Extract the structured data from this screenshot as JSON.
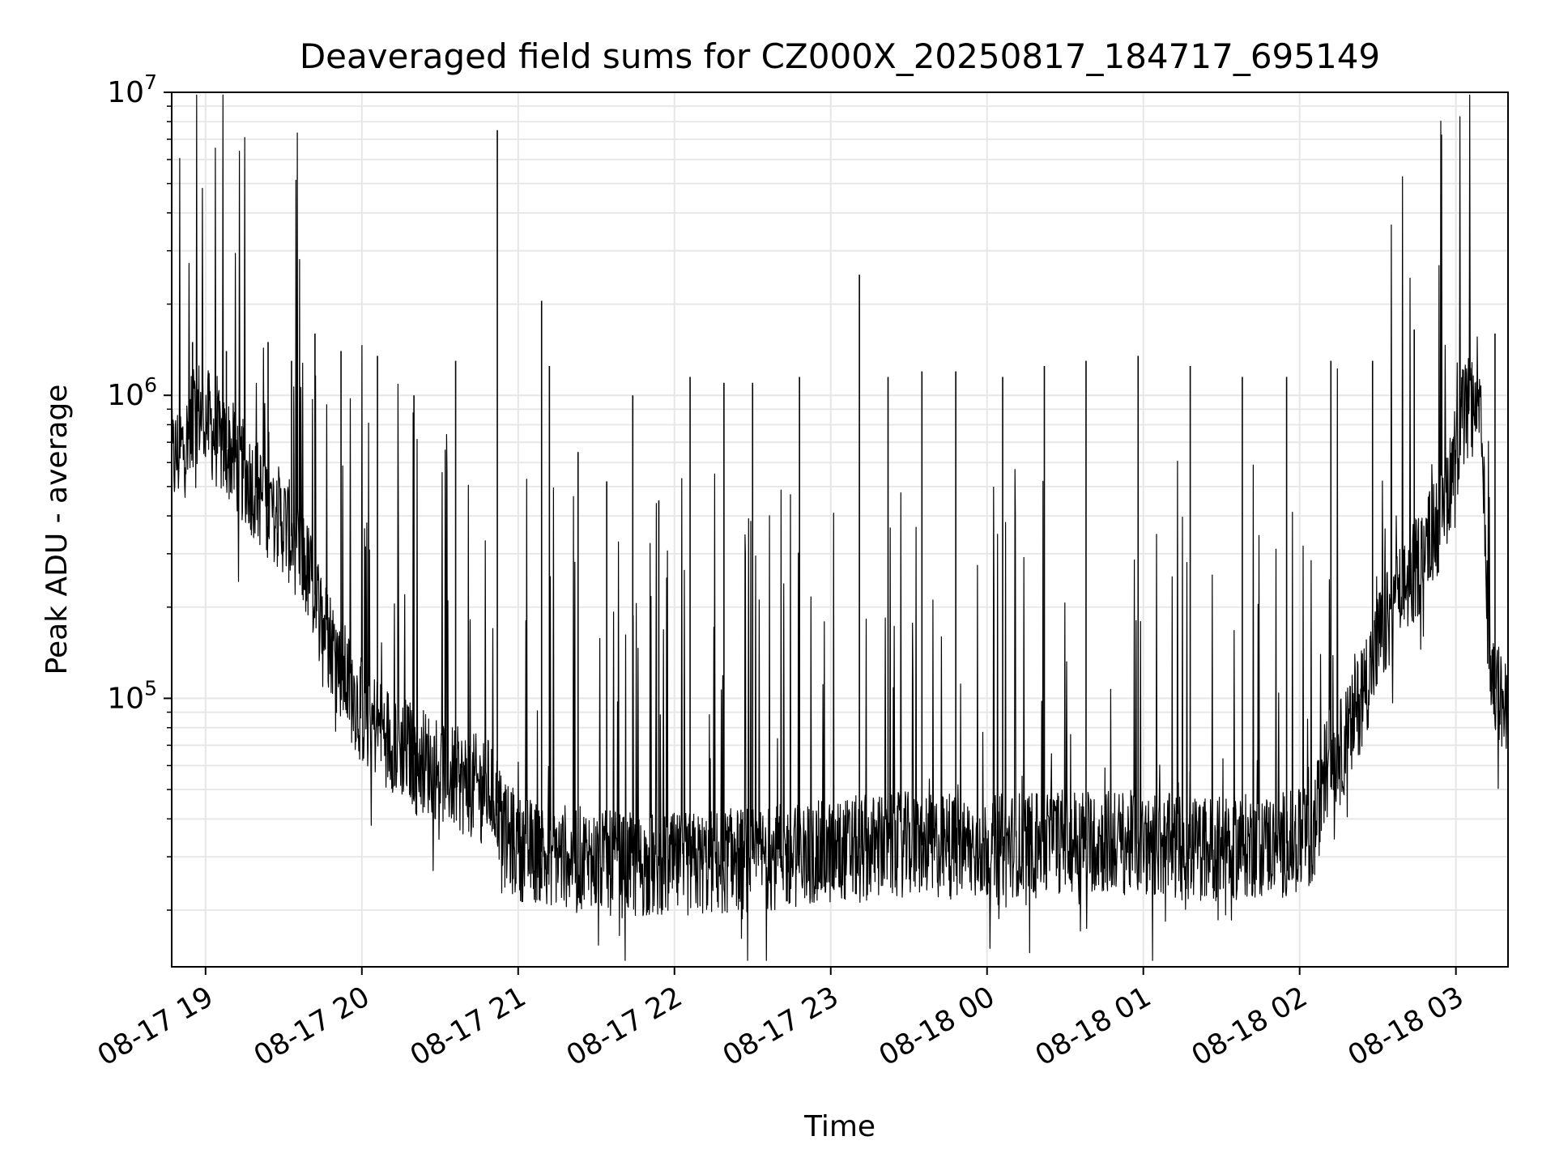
{
  "chart_data": {
    "type": "line",
    "title": "Deaveraged field sums for CZ000X_20250817_184717_695149",
    "xlabel": "Time",
    "ylabel": "Peak ADU - average",
    "yscale": "log",
    "ylim": [
      13000,
      10000000
    ],
    "xlim": [
      "2025-08-17 18:47",
      "2025-08-18 03:20"
    ],
    "grid": true,
    "grid_color": "#e6e6e6",
    "line_color": "#000000",
    "x_ticks": [
      {
        "t": "2025-08-17 19:00",
        "label": "08-17 19"
      },
      {
        "t": "2025-08-17 20:00",
        "label": "08-17 20"
      },
      {
        "t": "2025-08-17 21:00",
        "label": "08-17 21"
      },
      {
        "t": "2025-08-17 22:00",
        "label": "08-17 22"
      },
      {
        "t": "2025-08-17 23:00",
        "label": "08-17 23"
      },
      {
        "t": "2025-08-18 00:00",
        "label": "08-18 00"
      },
      {
        "t": "2025-08-18 01:00",
        "label": "08-18 01"
      },
      {
        "t": "2025-08-18 02:00",
        "label": "08-18 02"
      },
      {
        "t": "2025-08-18 03:00",
        "label": "08-18 03"
      }
    ],
    "y_ticks": [
      {
        "value": 100000,
        "base": "10",
        "exp": "5"
      },
      {
        "value": 1000000,
        "base": "10",
        "exp": "6"
      },
      {
        "value": 10000000,
        "base": "10",
        "exp": "7"
      }
    ],
    "series": [
      {
        "x": [
          "2025-08-17 18:47",
          "2025-08-17 18:50",
          "2025-08-17 18:53",
          "2025-08-17 18:55",
          "2025-08-17 18:57",
          "2025-08-17 19:00",
          "2025-08-17 19:05",
          "2025-08-17 19:10",
          "2025-08-17 19:12",
          "2025-08-17 19:15",
          "2025-08-17 19:20",
          "2025-08-17 19:25",
          "2025-08-17 19:30",
          "2025-08-17 19:35",
          "2025-08-17 19:40",
          "2025-08-17 19:45",
          "2025-08-17 19:50",
          "2025-08-17 19:55",
          "2025-08-17 20:00",
          "2025-08-17 20:10",
          "2025-08-17 20:20",
          "2025-08-17 20:30",
          "2025-08-17 20:40",
          "2025-08-17 20:50",
          "2025-08-17 20:52",
          "2025-08-17 20:55",
          "2025-08-17 21:00",
          "2025-08-17 21:10",
          "2025-08-17 21:20",
          "2025-08-17 21:30",
          "2025-08-17 21:40",
          "2025-08-17 21:50",
          "2025-08-17 22:00",
          "2025-08-17 22:10",
          "2025-08-17 22:20",
          "2025-08-17 22:30",
          "2025-08-17 22:40",
          "2025-08-17 22:50",
          "2025-08-17 23:00",
          "2025-08-17 23:10",
          "2025-08-17 23:20",
          "2025-08-17 23:30",
          "2025-08-17 23:40",
          "2025-08-17 23:50",
          "2025-08-18 00:00",
          "2025-08-18 00:10",
          "2025-08-18 00:20",
          "2025-08-18 00:30",
          "2025-08-18 00:40",
          "2025-08-18 00:50",
          "2025-08-18 01:00",
          "2025-08-18 01:10",
          "2025-08-18 01:20",
          "2025-08-18 01:30",
          "2025-08-18 01:40",
          "2025-08-18 01:50",
          "2025-08-18 02:00",
          "2025-08-18 02:05",
          "2025-08-18 02:10",
          "2025-08-18 02:15",
          "2025-08-18 02:20",
          "2025-08-18 02:25",
          "2025-08-18 02:30",
          "2025-08-18 02:35",
          "2025-08-18 02:40",
          "2025-08-18 02:45",
          "2025-08-18 02:50",
          "2025-08-18 02:55",
          "2025-08-18 03:00",
          "2025-08-18 03:02",
          "2025-08-18 03:04",
          "2025-08-18 03:06",
          "2025-08-18 03:08",
          "2025-08-18 03:10",
          "2025-08-18 03:12",
          "2025-08-18 03:14",
          "2025-08-18 03:16",
          "2025-08-18 03:18",
          "2025-08-18 03:20"
        ],
        "y": [
          600000,
          650000,
          700000,
          800000,
          900000,
          850000,
          700000,
          650000,
          600000,
          550000,
          480000,
          420000,
          380000,
          320000,
          250000,
          180000,
          140000,
          110000,
          90000,
          75000,
          65000,
          58000,
          52000,
          50000,
          45000,
          35000,
          32000,
          31000,
          30000,
          29000,
          28000,
          28000,
          28000,
          28500,
          29000,
          29500,
          30000,
          30500,
          31000,
          32000,
          32500,
          33000,
          32500,
          32000,
          32000,
          33000,
          33500,
          34000,
          34000,
          33500,
          33000,
          32500,
          32000,
          32000,
          32500,
          33000,
          33500,
          34000,
          60000,
          65000,
          80000,
          110000,
          150000,
          190000,
          230000,
          270000,
          330000,
          420000,
          650000,
          800000,
          880000,
          900000,
          880000,
          700000,
          200000,
          110000,
          105000,
          95000,
          80000
        ]
      }
    ],
    "spikes": [
      {
        "t": "2025-08-17 18:55",
        "y": 1500000
      },
      {
        "t": "2025-08-17 19:08",
        "y": 1400000
      },
      {
        "t": "2025-08-17 19:24",
        "y": 1500000
      },
      {
        "t": "2025-08-17 19:33",
        "y": 1300000
      },
      {
        "t": "2025-08-17 19:42",
        "y": 1600000
      },
      {
        "t": "2025-08-17 19:52",
        "y": 1400000
      },
      {
        "t": "2025-08-17 20:06",
        "y": 1350000
      },
      {
        "t": "2025-08-17 20:20",
        "y": 1000000
      },
      {
        "t": "2025-08-17 20:36",
        "y": 1300000
      },
      {
        "t": "2025-08-17 20:52",
        "y": 7500000
      },
      {
        "t": "2025-08-17 21:09",
        "y": 2050000
      },
      {
        "t": "2025-08-17 21:12",
        "y": 1250000
      },
      {
        "t": "2025-08-17 21:23",
        "y": 650000
      },
      {
        "t": "2025-08-17 21:34",
        "y": 520000
      },
      {
        "t": "2025-08-17 21:44",
        "y": 1000000
      },
      {
        "t": "2025-08-17 21:54",
        "y": 450000
      },
      {
        "t": "2025-08-17 22:06",
        "y": 1150000
      },
      {
        "t": "2025-08-17 22:19",
        "y": 1100000
      },
      {
        "t": "2025-08-17 22:30",
        "y": 1100000
      },
      {
        "t": "2025-08-17 22:48",
        "y": 1150000
      },
      {
        "t": "2025-08-17 23:11",
        "y": 2500000
      },
      {
        "t": "2025-08-17 23:22",
        "y": 1150000
      },
      {
        "t": "2025-08-17 23:35",
        "y": 1200000
      },
      {
        "t": "2025-08-17 23:48",
        "y": 1200000
      },
      {
        "t": "2025-08-18 00:06",
        "y": 1150000
      },
      {
        "t": "2025-08-18 00:22",
        "y": 1250000
      },
      {
        "t": "2025-08-18 00:38",
        "y": 1300000
      },
      {
        "t": "2025-08-18 00:58",
        "y": 1350000
      },
      {
        "t": "2025-08-18 01:18",
        "y": 1250000
      },
      {
        "t": "2025-08-18 01:38",
        "y": 1150000
      },
      {
        "t": "2025-08-18 01:55",
        "y": 1150000
      },
      {
        "t": "2025-08-18 02:12",
        "y": 1300000
      },
      {
        "t": "2025-08-18 02:28",
        "y": 1300000
      },
      {
        "t": "2025-08-18 02:44",
        "y": 1650000
      },
      {
        "t": "2025-08-18 03:05",
        "y": 1200000
      },
      {
        "t": "2025-08-18 03:15",
        "y": 1600000
      }
    ]
  }
}
